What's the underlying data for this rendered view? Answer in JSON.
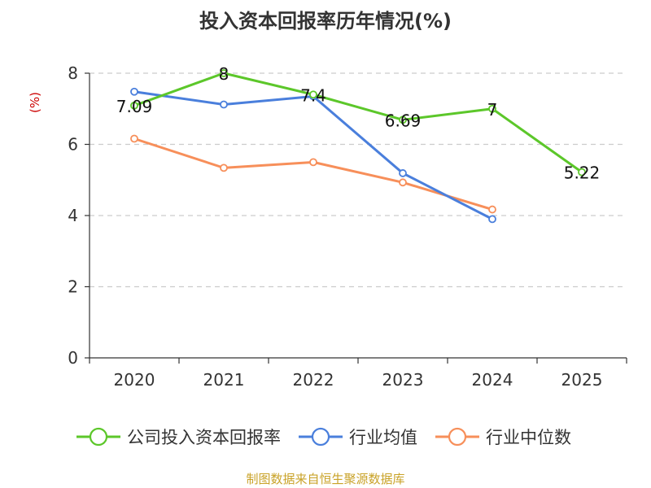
{
  "chart_data": {
    "type": "line",
    "title": "投入资本回报率历年情况(%)",
    "ylabel": "(%)",
    "xlabel": "",
    "categories": [
      "2020",
      "2021",
      "2022",
      "2023",
      "2024",
      "2025"
    ],
    "ylim": [
      0,
      8
    ],
    "yticks": [
      0,
      2,
      4,
      6,
      8
    ],
    "grid": true,
    "legend_position": "bottom",
    "series": [
      {
        "name": "公司投入资本回报率",
        "color": "#5cc72a",
        "values": [
          7.09,
          8,
          7.4,
          6.69,
          7,
          5.22
        ],
        "labels": [
          "7.09",
          "8",
          "7.4",
          "6.69",
          "7",
          "5.22"
        ]
      },
      {
        "name": "行业均值",
        "color": "#4a7fdc",
        "values": [
          7.48,
          7.12,
          7.35,
          5.19,
          3.9,
          null
        ]
      },
      {
        "name": "行业中位数",
        "color": "#f78f5a",
        "values": [
          6.16,
          5.34,
          5.5,
          4.93,
          4.17,
          null
        ]
      }
    ],
    "source": "制图数据来自恒生聚源数据库",
    "source_color": "#c9a227",
    "ylabel_color": "#cc0000"
  }
}
